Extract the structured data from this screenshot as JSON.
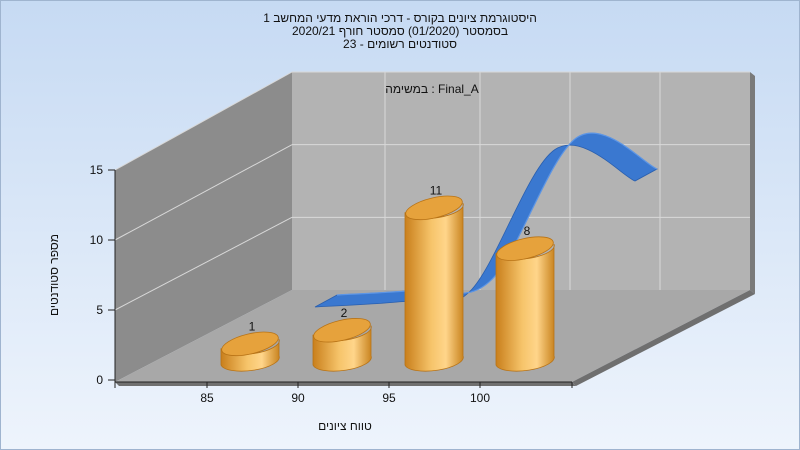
{
  "chart_data": {
    "type": "bar",
    "title_lines": [
      "היסטוגרמת ציונים בקורס - דרכי הוראת מדעי המחשב 1",
      "בסמסטר  (01/2020)  סמסטר חורף 2020/21",
      "סטודנטים רשומים - 23"
    ],
    "annotation": "במשימה : Final_A",
    "xlabel": "טווח ציונים",
    "ylabel": "מספר סטודנטים",
    "x_ticks": [
      "85",
      "90",
      "95",
      "100"
    ],
    "y_ticks": [
      "0",
      "5",
      "10",
      "15"
    ],
    "ylim": [
      0,
      15
    ],
    "categories": [
      "85",
      "90",
      "95",
      "100"
    ],
    "values": [
      1,
      2,
      11,
      8
    ],
    "data_labels": [
      "1",
      "2",
      "11",
      "8"
    ],
    "curve": [
      0,
      0.5,
      1.5,
      15,
      12
    ],
    "grid": true,
    "colors": {
      "bar": "#F2B14A",
      "bar_dark": "#D48A20",
      "curve": "#3A78D0",
      "back_wall": "#B3B3B3",
      "side_wall": "#8C8C8C",
      "floor": "#A8A8A8",
      "bg_top": "#C6DAF3",
      "bg_bottom": "#EEF4FC"
    }
  }
}
